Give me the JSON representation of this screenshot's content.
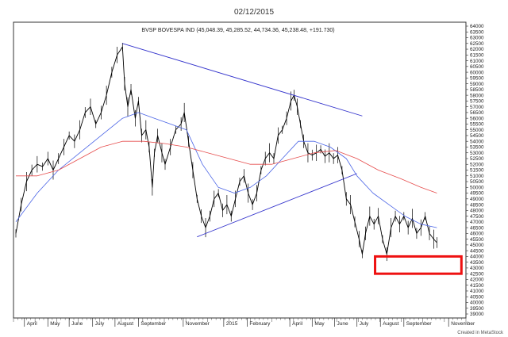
{
  "header": {
    "date": "02/12/2015"
  },
  "footer": {
    "credit": "Created in MetaStock"
  },
  "chart_data": {
    "type": "line",
    "title": "BVSP BOVESPA IND (45,048.39, 45,285.52, 44,734.36, 45,238.48, +191.730)",
    "ylim": [
      39000,
      64000
    ],
    "y_ticks": [
      39000,
      39500,
      40000,
      40500,
      41000,
      41500,
      42000,
      42500,
      43000,
      43500,
      44000,
      44500,
      45000,
      45500,
      46000,
      46500,
      47000,
      47500,
      48000,
      48500,
      49000,
      49500,
      50000,
      50500,
      51000,
      51500,
      52000,
      52500,
      53000,
      53500,
      54000,
      54500,
      55000,
      55500,
      56000,
      56500,
      57000,
      57500,
      58000,
      58500,
      59000,
      59500,
      60000,
      60500,
      61000,
      61500,
      62000,
      62500,
      63000,
      63500,
      64000
    ],
    "x_range": [
      0,
      420
    ],
    "x_labels": [
      {
        "x": 8,
        "label": "April"
      },
      {
        "x": 30,
        "label": "May"
      },
      {
        "x": 50,
        "label": "June"
      },
      {
        "x": 72,
        "label": "July"
      },
      {
        "x": 93,
        "label": "August"
      },
      {
        "x": 115,
        "label": "September"
      },
      {
        "x": 157,
        "label": "November"
      },
      {
        "x": 195,
        "label": "2015"
      },
      {
        "x": 217,
        "label": "February"
      },
      {
        "x": 257,
        "label": "April"
      },
      {
        "x": 278,
        "label": "May"
      },
      {
        "x": 299,
        "label": "June"
      },
      {
        "x": 320,
        "label": "July"
      },
      {
        "x": 342,
        "label": "August"
      },
      {
        "x": 364,
        "label": "September"
      },
      {
        "x": 406,
        "label": "November"
      }
    ],
    "series": [
      {
        "color": "#000000",
        "points": [
          [
            0,
            46000
          ],
          [
            5,
            48500
          ],
          [
            10,
            50500
          ],
          [
            15,
            51500
          ],
          [
            20,
            52000
          ],
          [
            25,
            51800
          ],
          [
            30,
            52500
          ],
          [
            35,
            51500
          ],
          [
            40,
            52500
          ],
          [
            45,
            53500
          ],
          [
            50,
            54500
          ],
          [
            55,
            54000
          ],
          [
            60,
            55000
          ],
          [
            65,
            56500
          ],
          [
            70,
            57000
          ],
          [
            75,
            55500
          ],
          [
            80,
            56500
          ],
          [
            85,
            58000
          ],
          [
            90,
            60000
          ],
          [
            95,
            61500
          ],
          [
            100,
            62200
          ],
          [
            102,
            59000
          ],
          [
            105,
            57000
          ],
          [
            108,
            58500
          ],
          [
            112,
            56000
          ],
          [
            115,
            57500
          ],
          [
            118,
            54500
          ],
          [
            122,
            55000
          ],
          [
            125,
            53500
          ],
          [
            128,
            50000
          ],
          [
            130,
            53000
          ],
          [
            133,
            54500
          ],
          [
            137,
            53000
          ],
          [
            140,
            52000
          ],
          [
            145,
            53500
          ],
          [
            150,
            55000
          ],
          [
            155,
            55500
          ],
          [
            158,
            56500
          ],
          [
            162,
            54000
          ],
          [
            166,
            51500
          ],
          [
            170,
            49000
          ],
          [
            174,
            47500
          ],
          [
            178,
            46500
          ],
          [
            182,
            47500
          ],
          [
            186,
            49000
          ],
          [
            190,
            49500
          ],
          [
            194,
            48000
          ],
          [
            198,
            48500
          ],
          [
            202,
            47500
          ],
          [
            206,
            49000
          ],
          [
            210,
            50500
          ],
          [
            214,
            51000
          ],
          [
            218,
            49500
          ],
          [
            222,
            48500
          ],
          [
            226,
            49500
          ],
          [
            230,
            51500
          ],
          [
            234,
            52500
          ],
          [
            238,
            53000
          ],
          [
            242,
            52500
          ],
          [
            246,
            54500
          ],
          [
            250,
            55000
          ],
          [
            254,
            56000
          ],
          [
            258,
            57500
          ],
          [
            261,
            58000
          ],
          [
            264,
            57000
          ],
          [
            267,
            55500
          ],
          [
            270,
            54000
          ],
          [
            274,
            53000
          ],
          [
            278,
            52800
          ],
          [
            282,
            53000
          ],
          [
            286,
            53300
          ],
          [
            290,
            52700
          ],
          [
            294,
            53000
          ],
          [
            298,
            52500
          ],
          [
            302,
            52800
          ],
          [
            306,
            51500
          ],
          [
            310,
            49000
          ],
          [
            314,
            48500
          ],
          [
            318,
            47000
          ],
          [
            322,
            45500
          ],
          [
            325,
            44200
          ],
          [
            328,
            46000
          ],
          [
            332,
            47500
          ],
          [
            336,
            46800
          ],
          [
            340,
            47500
          ],
          [
            344,
            45500
          ],
          [
            348,
            44200
          ],
          [
            352,
            46500
          ],
          [
            356,
            47500
          ],
          [
            360,
            46800
          ],
          [
            364,
            47500
          ],
          [
            368,
            46500
          ],
          [
            372,
            47300
          ],
          [
            376,
            46000
          ],
          [
            380,
            46500
          ],
          [
            384,
            47500
          ],
          [
            388,
            46000
          ],
          [
            392,
            45500
          ],
          [
            395,
            45200
          ]
        ]
      },
      {
        "color": "#4a64e6",
        "points": [
          [
            0,
            47000
          ],
          [
            20,
            49500
          ],
          [
            40,
            51500
          ],
          [
            60,
            53000
          ],
          [
            80,
            54500
          ],
          [
            100,
            56000
          ],
          [
            115,
            56500
          ],
          [
            130,
            56000
          ],
          [
            145,
            55500
          ],
          [
            160,
            55000
          ],
          [
            175,
            52000
          ],
          [
            190,
            50000
          ],
          [
            205,
            49500
          ],
          [
            220,
            50000
          ],
          [
            235,
            51000
          ],
          [
            250,
            52500
          ],
          [
            265,
            54000
          ],
          [
            280,
            54000
          ],
          [
            295,
            53500
          ],
          [
            310,
            52500
          ],
          [
            320,
            51000
          ],
          [
            335,
            49500
          ],
          [
            350,
            48500
          ],
          [
            365,
            47500
          ],
          [
            380,
            46800
          ],
          [
            395,
            46500
          ]
        ]
      },
      {
        "color": "#e64d4d",
        "points": [
          [
            0,
            51000
          ],
          [
            20,
            51000
          ],
          [
            40,
            51500
          ],
          [
            60,
            52500
          ],
          [
            80,
            53500
          ],
          [
            100,
            54000
          ],
          [
            120,
            54000
          ],
          [
            140,
            53800
          ],
          [
            160,
            53500
          ],
          [
            180,
            53000
          ],
          [
            200,
            52500
          ],
          [
            220,
            52000
          ],
          [
            240,
            52000
          ],
          [
            260,
            52500
          ],
          [
            280,
            53000
          ],
          [
            300,
            53200
          ],
          [
            320,
            52500
          ],
          [
            340,
            51500
          ],
          [
            360,
            50800
          ],
          [
            380,
            50000
          ],
          [
            395,
            49500
          ]
        ]
      }
    ],
    "annotations": [
      {
        "type": "trendline",
        "color": "#3333cc",
        "points": [
          [
            100,
            62500
          ],
          [
            325,
            56200
          ]
        ]
      },
      {
        "type": "trendline",
        "color": "#3333cc",
        "points": [
          [
            170,
            45700
          ],
          [
            320,
            51200
          ]
        ]
      },
      {
        "type": "rectangle",
        "color": "#ee1111",
        "x": [
          337,
          418
        ],
        "y": [
          42500,
          44000
        ]
      }
    ]
  }
}
